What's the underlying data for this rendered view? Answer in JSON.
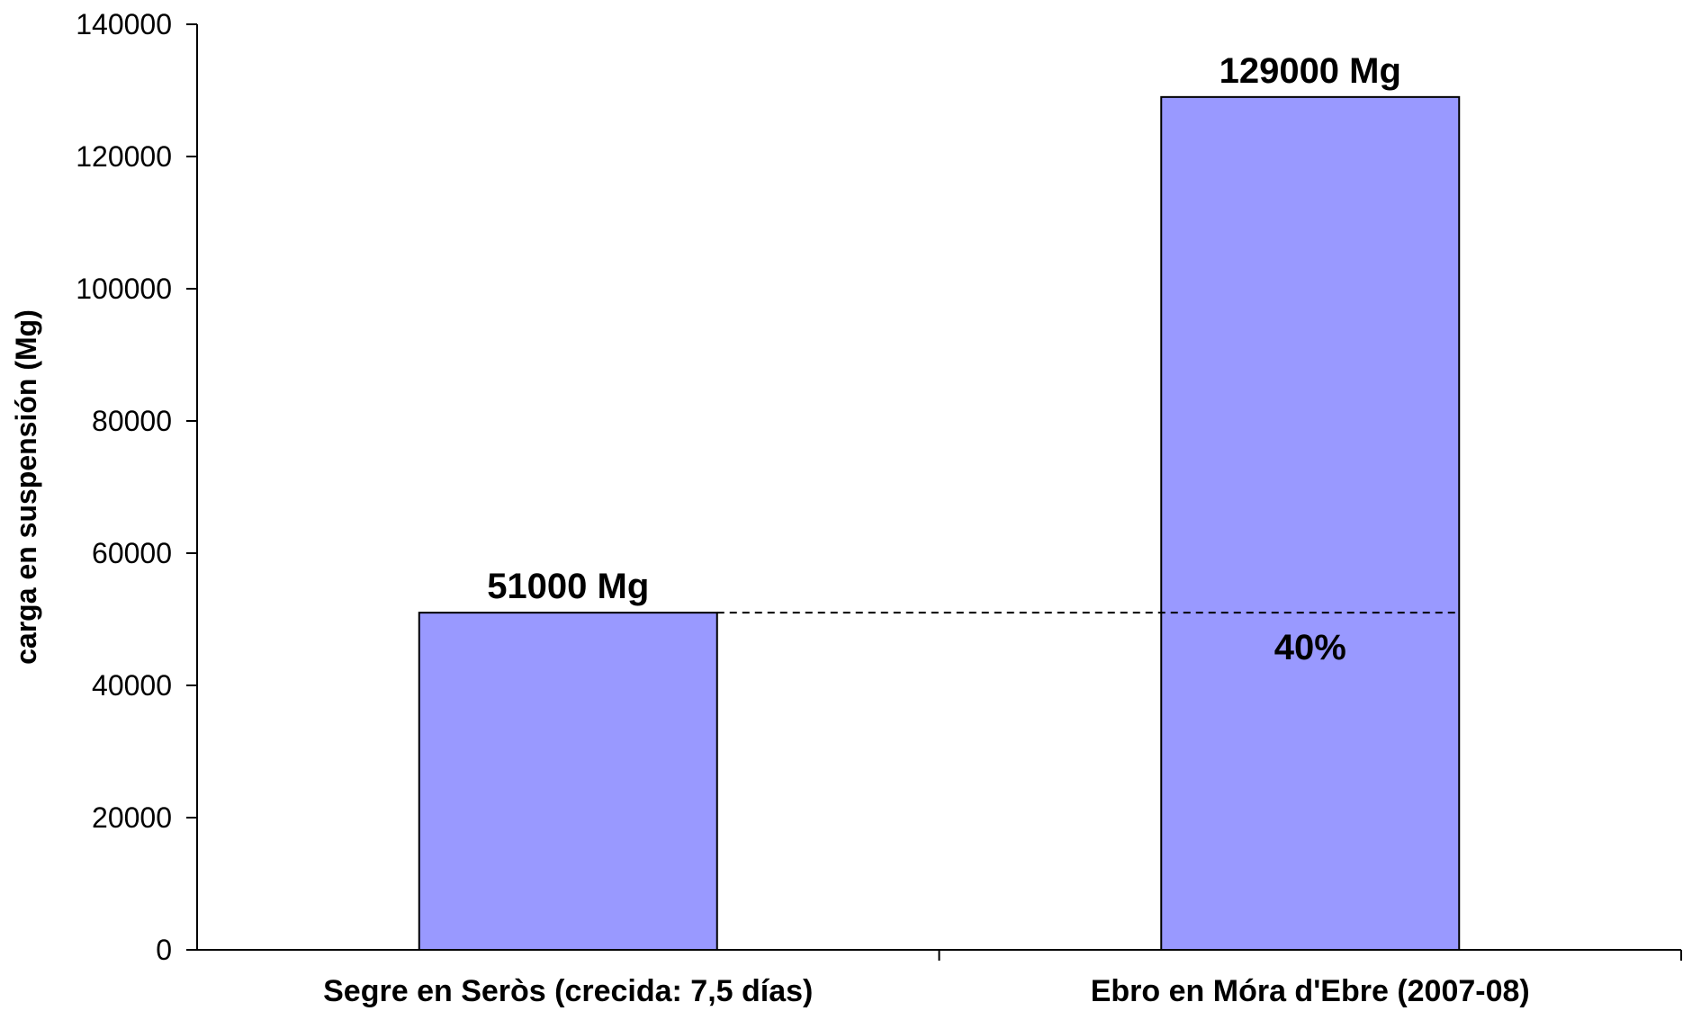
{
  "chart_data": {
    "type": "bar",
    "categories": [
      "Segre en Seròs (crecida: 7,5 días)",
      "Ebro en Móra d'Ebre (2007-08)"
    ],
    "values": [
      51000,
      129000
    ],
    "data_labels": [
      "51000 Mg",
      "129000 Mg"
    ],
    "title": "",
    "xlabel": "",
    "ylabel": "carga en suspensión (Mg)",
    "ylim": [
      0,
      140000
    ],
    "yticks": [
      0,
      20000,
      40000,
      60000,
      80000,
      100000,
      120000,
      140000
    ],
    "bar_color": "#9999ff",
    "grid": false,
    "legend": "none",
    "annotation": {
      "text": "40%",
      "reference_value": 51000,
      "line_style": "dashed"
    }
  }
}
